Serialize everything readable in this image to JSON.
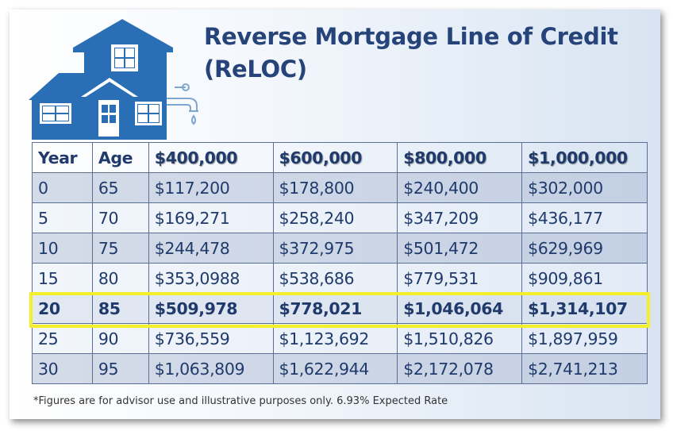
{
  "title": {
    "line1": "Reverse Mortgage Line of Credit",
    "line2": "(ReLOC)"
  },
  "icon": "house-with-faucet-icon",
  "colors": {
    "title": "#26437a",
    "house": "#2a6fb5",
    "highlight": "#f3ef2a",
    "table_text": "#1f3a6b"
  },
  "table": {
    "headers": [
      "Year",
      "Age",
      "$400,000",
      "$600,000",
      "$800,000",
      "$1,000,000"
    ],
    "rows": [
      [
        "0",
        "65",
        "$117,200",
        "$178,800",
        "$240,400",
        "$302,000"
      ],
      [
        "5",
        "70",
        "$169,271",
        "$258,240",
        "$347,209",
        "$436,177"
      ],
      [
        "10",
        "75",
        "$244,478",
        "$372,975",
        "$501,472",
        "$629,969"
      ],
      [
        "15",
        "80",
        "$353,0988",
        "$538,686",
        "$779,531",
        "$909,861"
      ],
      [
        "20",
        "85",
        "$509,978",
        "$778,021",
        "$1,046,064",
        "$1,314,107"
      ],
      [
        "25",
        "90",
        "$736,559",
        "$1,123,692",
        "$1,510,826",
        "$1,897,959"
      ],
      [
        "30",
        "95",
        "$1,063,809",
        "$1,622,944",
        "$2,172,078",
        "$2,741,213"
      ]
    ],
    "highlighted_row": "20"
  },
  "footnote": "*Figures are for advisor use and illustrative purposes only.  6.93% Expected Rate"
}
